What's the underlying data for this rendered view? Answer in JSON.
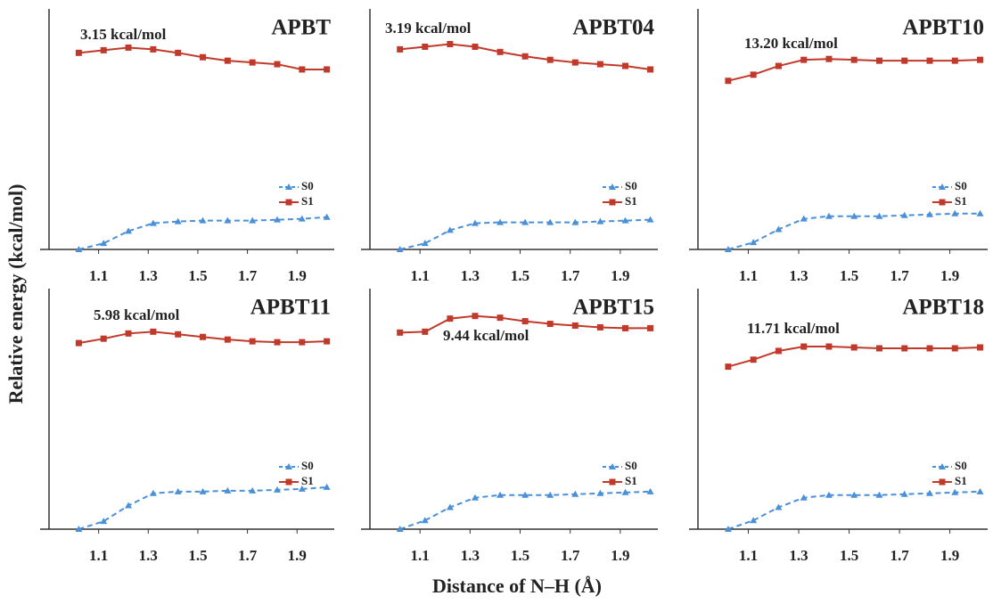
{
  "axis_labels": {
    "y": "Relative energy (kcal/mol)",
    "x": "Distance of N–H (Å)"
  },
  "chart_data": [
    {
      "type": "line",
      "title": "APBT",
      "annotation": "3.15 kcal/mol",
      "x": [
        1.02,
        1.12,
        1.22,
        1.32,
        1.42,
        1.52,
        1.62,
        1.72,
        1.82,
        1.92,
        2.02
      ],
      "series": [
        {
          "name": "S0",
          "color": "#4a90d9",
          "linestyle": "dashed",
          "marker": "triangle",
          "values": [
            0,
            3.5,
            10.5,
            15,
            16,
            16.5,
            16.5,
            16.5,
            17,
            17.5,
            18.5
          ]
        },
        {
          "name": "S1",
          "color": "#c0392b",
          "linestyle": "solid",
          "marker": "square",
          "values": [
            112.5,
            114,
            115.5,
            114.5,
            112.5,
            110,
            108,
            107,
            106,
            103,
            103
          ]
        }
      ],
      "xlim": [
        0.9,
        2.05
      ],
      "xticks": [
        1.1,
        1.3,
        1.5,
        1.7,
        1.9
      ],
      "ylim": [
        0,
        130
      ],
      "grid": false,
      "legend": "right"
    },
    {
      "type": "line",
      "title": "APBT04",
      "annotation": "3.19 kcal/mol",
      "x": [
        1.02,
        1.12,
        1.22,
        1.32,
        1.42,
        1.52,
        1.62,
        1.72,
        1.82,
        1.92,
        2.02
      ],
      "series": [
        {
          "name": "S0",
          "color": "#4a90d9",
          "linestyle": "dashed",
          "marker": "triangle",
          "values": [
            0,
            3.5,
            11,
            15,
            15.5,
            15.5,
            15.5,
            15.5,
            16,
            16.5,
            17
          ]
        },
        {
          "name": "S1",
          "color": "#c0392b",
          "linestyle": "solid",
          "marker": "square",
          "values": [
            114.5,
            116,
            117.5,
            116,
            113,
            110.5,
            108.5,
            107,
            106,
            105,
            103
          ]
        }
      ],
      "xlim": [
        0.9,
        2.05
      ],
      "xticks": [
        1.1,
        1.3,
        1.5,
        1.7,
        1.9
      ],
      "ylim": [
        0,
        130
      ],
      "grid": false,
      "legend": "right"
    },
    {
      "type": "line",
      "title": "APBT10",
      "annotation": "13.20 kcal/mol",
      "x": [
        1.02,
        1.12,
        1.22,
        1.32,
        1.42,
        1.52,
        1.62,
        1.72,
        1.82,
        1.92,
        2.02
      ],
      "series": [
        {
          "name": "S0",
          "color": "#4a90d9",
          "linestyle": "dashed",
          "marker": "triangle",
          "values": [
            0,
            4,
            11.5,
            17.5,
            19,
            19,
            19,
            19.5,
            20,
            20.5,
            20.5
          ]
        },
        {
          "name": "S1",
          "color": "#c0392b",
          "linestyle": "solid",
          "marker": "square",
          "values": [
            96.5,
            100,
            105,
            108.5,
            109,
            108.5,
            108,
            108,
            108,
            108,
            108.5
          ]
        }
      ],
      "xlim": [
        0.9,
        2.05
      ],
      "xticks": [
        1.1,
        1.3,
        1.5,
        1.7,
        1.9
      ],
      "ylim": [
        0,
        130
      ],
      "grid": false,
      "legend": "right"
    },
    {
      "type": "line",
      "title": "APBT11",
      "annotation": "5.98 kcal/mol",
      "x": [
        1.02,
        1.12,
        1.22,
        1.32,
        1.42,
        1.52,
        1.62,
        1.72,
        1.82,
        1.92,
        2.02
      ],
      "series": [
        {
          "name": "S0",
          "color": "#4a90d9",
          "linestyle": "dashed",
          "marker": "triangle",
          "values": [
            0,
            4.5,
            13.5,
            20.5,
            21.5,
            21.5,
            22,
            22,
            22.5,
            23,
            24
          ]
        },
        {
          "name": "S1",
          "color": "#c0392b",
          "linestyle": "solid",
          "marker": "square",
          "values": [
            106.5,
            109,
            112,
            113,
            111.5,
            110,
            108.5,
            107.5,
            107,
            107,
            107.5
          ]
        }
      ],
      "xlim": [
        0.9,
        2.05
      ],
      "xticks": [
        1.1,
        1.3,
        1.5,
        1.7,
        1.9
      ],
      "ylim": [
        0,
        130
      ],
      "grid": false,
      "legend": "right"
    },
    {
      "type": "line",
      "title": "APBT15",
      "annotation": "9.44 kcal/mol",
      "x": [
        1.02,
        1.12,
        1.22,
        1.32,
        1.42,
        1.52,
        1.62,
        1.72,
        1.82,
        1.92,
        2.02
      ],
      "series": [
        {
          "name": "S0",
          "color": "#4a90d9",
          "linestyle": "dashed",
          "marker": "triangle",
          "values": [
            0,
            5,
            12.5,
            18,
            19.5,
            19.5,
            19.5,
            20,
            20.5,
            21,
            21.5
          ]
        },
        {
          "name": "S1",
          "color": "#c0392b",
          "linestyle": "solid",
          "marker": "square",
          "values": [
            112.5,
            113,
            120.5,
            122,
            121,
            119,
            117.5,
            116.5,
            115.5,
            115,
            115
          ]
        }
      ],
      "xlim": [
        0.9,
        2.05
      ],
      "xticks": [
        1.1,
        1.3,
        1.5,
        1.7,
        1.9
      ],
      "ylim": [
        0,
        130
      ],
      "grid": false,
      "legend": "right"
    },
    {
      "type": "line",
      "title": "APBT18",
      "annotation": "11.71 kcal/mol",
      "x": [
        1.02,
        1.12,
        1.22,
        1.32,
        1.42,
        1.52,
        1.62,
        1.72,
        1.82,
        1.92,
        2.02
      ],
      "series": [
        {
          "name": "S0",
          "color": "#4a90d9",
          "linestyle": "dashed",
          "marker": "triangle",
          "values": [
            0,
            5,
            12.5,
            18,
            19.5,
            19.5,
            19.5,
            20,
            20.5,
            21,
            21.5
          ]
        },
        {
          "name": "S1",
          "color": "#c0392b",
          "linestyle": "solid",
          "marker": "square",
          "values": [
            93,
            97,
            102,
            104.5,
            104.5,
            104,
            103.5,
            103.5,
            103.5,
            103.5,
            104
          ]
        }
      ],
      "xlim": [
        0.9,
        2.05
      ],
      "xticks": [
        1.1,
        1.3,
        1.5,
        1.7,
        1.9
      ],
      "ylim": [
        0,
        130
      ],
      "grid": false,
      "legend": "right"
    }
  ]
}
